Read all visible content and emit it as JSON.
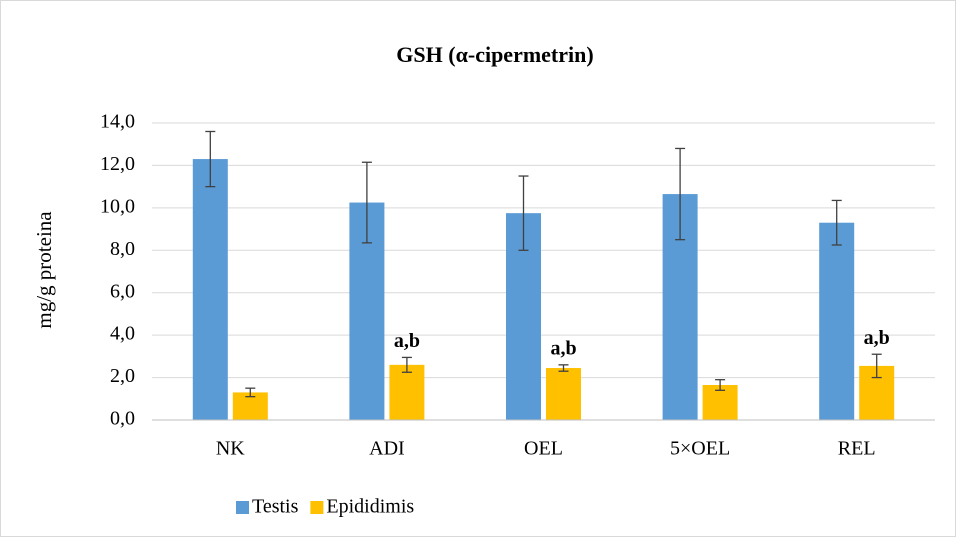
{
  "chart_data": {
    "type": "bar",
    "title": "GSH (α-cipermetrin)",
    "y_label": "mg/g proteina",
    "categories": [
      "NK",
      "ADI",
      "OEL",
      "5×OEL",
      "REL"
    ],
    "series": [
      {
        "name": "Testis",
        "color": "#5b9bd5",
        "values": [
          12.3,
          10.25,
          9.75,
          10.65,
          9.3
        ],
        "errors": [
          1.3,
          1.9,
          1.75,
          2.15,
          1.05
        ]
      },
      {
        "name": "Epididimis",
        "color": "#ffc000",
        "values": [
          1.3,
          2.6,
          2.45,
          1.65,
          2.55
        ],
        "errors": [
          0.2,
          0.35,
          0.15,
          0.25,
          0.55
        ],
        "annotations": [
          null,
          "a,b",
          "a,b",
          null,
          "a,b"
        ]
      }
    ],
    "ylim": [
      0,
      14
    ],
    "yticks": [
      {
        "value": 0,
        "label": "0,0"
      },
      {
        "value": 2,
        "label": "2,0"
      },
      {
        "value": 4,
        "label": "4,0"
      },
      {
        "value": 6,
        "label": "6,0"
      },
      {
        "value": 8,
        "label": "8,0"
      },
      {
        "value": 10,
        "label": "10,0"
      },
      {
        "value": 12,
        "label": "12,0"
      },
      {
        "value": 14,
        "label": "14,0"
      }
    ],
    "grid": true,
    "legend": "bottom"
  }
}
